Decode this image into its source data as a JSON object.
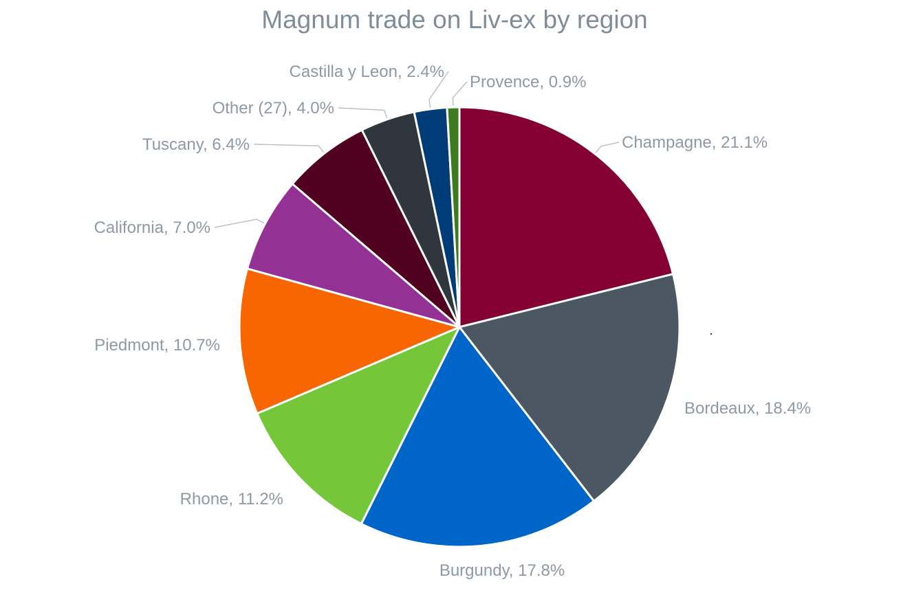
{
  "chart_data": {
    "type": "pie",
    "title": "Magnum trade on Liv-ex by region",
    "slices": [
      {
        "label": "Champagne",
        "value": 21.1,
        "display": "Champagne, 21.1%",
        "color": "#840032"
      },
      {
        "label": "Bordeaux",
        "value": 18.4,
        "display": "Bordeaux, 18.4%",
        "color": "#4b5863"
      },
      {
        "label": "Burgundy",
        "value": 17.8,
        "display": "Burgundy, 17.8%",
        "color": "#0065c8"
      },
      {
        "label": "Rhone",
        "value": 11.2,
        "display": "Rhone, 11.2%",
        "color": "#75c739"
      },
      {
        "label": "Piedmont",
        "value": 10.7,
        "display": "Piedmont, 10.7%",
        "color": "#f76600"
      },
      {
        "label": "California",
        "value": 7.0,
        "display": "California, 7.0%",
        "color": "#933294"
      },
      {
        "label": "Tuscany",
        "value": 6.4,
        "display": "Tuscany, 6.4%",
        "color": "#510020"
      },
      {
        "label": "Other (27)",
        "value": 4.0,
        "display": "Other (27), 4.0%",
        "color": "#2f363d"
      },
      {
        "label": "Castilla y Leon",
        "value": 2.4,
        "display": "Castilla y Leon, 2.4%",
        "color": "#003c78"
      },
      {
        "label": "Provence",
        "value": 0.9,
        "display": "Provence, 0.9%",
        "color": "#3d7b1e"
      }
    ],
    "start_angle": "12 o'clock",
    "direction": "clockwise",
    "legend": "none",
    "data_labels": "outside"
  }
}
